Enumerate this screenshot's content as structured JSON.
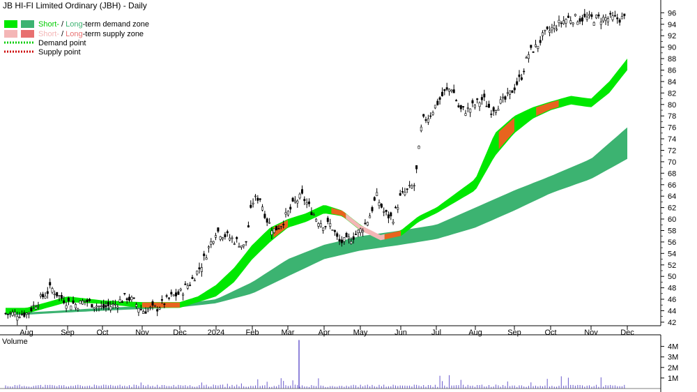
{
  "colors": {
    "short_demand": "#00e800",
    "long_demand": "#3cb371",
    "short_supply": "#f4b6b6",
    "long_supply": "#e87070",
    "supply_band": "#e8641e",
    "demand_point": "#00cc00",
    "supply_point": "#cc0000",
    "volume_label": "#4b0082",
    "volume_bar": "#6a5acd",
    "candle": "#000000"
  },
  "chart_data": {
    "type": "line",
    "title": "JB HI-FI Limited Ordinary (JBH) - Daily",
    "legend": {
      "placement": "top-left",
      "zones": [
        {
          "short": "Short-",
          "sep": " / ",
          "long": "Long",
          "rest": "-term demand zone"
        },
        {
          "short": "Short-",
          "sep": " / ",
          "long": "Long",
          "rest": "-term supply zone"
        }
      ],
      "points": [
        "Demand point",
        "Supply point"
      ]
    },
    "x_months": [
      "Aug",
      "Sep",
      "Oct",
      "Nov",
      "Dec",
      "2024",
      "Feb",
      "Mar",
      "Apr",
      "May",
      "Jun",
      "Jul",
      "Aug",
      "Sep",
      "Oct",
      "Nov",
      "Dec"
    ],
    "y_ticks": [
      42,
      44,
      46,
      48,
      50,
      52,
      54,
      56,
      58,
      60,
      62,
      64,
      66,
      68,
      70,
      72,
      74,
      76,
      78,
      80,
      82,
      84,
      86,
      88,
      90,
      92,
      94,
      96
    ],
    "ylim": [
      41.5,
      97.5
    ],
    "grid": false,
    "price_series": {
      "name": "JBH",
      "t": [
        0,
        0.2,
        0.4,
        0.6,
        0.8,
        1,
        1.3,
        1.5,
        1.8,
        2,
        2.3,
        2.6,
        2.8,
        3,
        3.4,
        3.8,
        4,
        4.3,
        4.6,
        4.8,
        5,
        5.3,
        5.6,
        5.8,
        6,
        6.2,
        6.4,
        6.6,
        6.8,
        7,
        7.2,
        7.4,
        7.6,
        7.8,
        8,
        8.2,
        8.4,
        8.6,
        8.8,
        9,
        9.2,
        9.4,
        9.6,
        9.8,
        10,
        10.2,
        10.4,
        10.6,
        10.8,
        11,
        11.2,
        11.4,
        11.6,
        11.8,
        12,
        12.2,
        12.4,
        12.6,
        12.8,
        13,
        13.2,
        13.4,
        13.6,
        13.8,
        14,
        14.2,
        14.4,
        14.6,
        14.8,
        15,
        15.2,
        15.4,
        15.6,
        15.8,
        16
      ],
      "price": [
        43.5,
        45,
        46.5,
        48,
        46.5,
        45.5,
        45,
        45.8,
        45,
        44.5,
        45,
        46.5,
        45.5,
        44,
        44.5,
        46.5,
        47,
        49,
        52,
        55,
        58,
        57,
        56,
        55,
        63,
        64,
        60,
        58,
        59,
        61,
        63,
        64,
        62,
        60,
        59,
        59,
        56,
        56,
        57,
        58,
        60,
        64,
        61,
        60,
        64,
        65,
        66,
        77,
        78,
        80,
        82,
        83,
        79,
        79,
        80,
        81,
        79,
        80,
        81,
        83,
        85,
        89,
        90,
        92,
        93,
        94,
        95,
        95,
        95,
        95,
        95,
        95,
        95,
        95,
        95
      ],
      "range_note": ""
    },
    "short_band": {
      "t": [
        0,
        1,
        2,
        3,
        4,
        4.5,
        5,
        5.5,
        6,
        6.5,
        7,
        7.5,
        8,
        8.5,
        9,
        9.5,
        10,
        10.5,
        11,
        11.5,
        12,
        12.5,
        13,
        13.5,
        14,
        14.5,
        15,
        15.5,
        16
      ],
      "upper": [
        44.5,
        46.5,
        45.8,
        45.5,
        45.5,
        46.5,
        48.5,
        51.5,
        55.5,
        58.5,
        60,
        61,
        62.5,
        61.5,
        59,
        57,
        58,
        60.5,
        62,
        64.5,
        67,
        75,
        78,
        79.5,
        80.5,
        81.5,
        81,
        84,
        88
      ],
      "lower": [
        43.5,
        45.5,
        45.2,
        44.5,
        44.5,
        45.5,
        46.5,
        49,
        53,
        56,
        58.5,
        59.5,
        61,
        60.5,
        58,
        56.5,
        57,
        59.5,
        61,
        63,
        65,
        71,
        75,
        77.5,
        79,
        80,
        79.5,
        82,
        86
      ],
      "supply_segments": [
        [
          3,
          4
        ],
        [
          6.6,
          7
        ],
        [
          8.2,
          8.6
        ],
        [
          8.6,
          9.6
        ],
        [
          9.6,
          10
        ],
        [
          12.6,
          13
        ],
        [
          13.6,
          14.2
        ]
      ]
    },
    "long_band": {
      "t": [
        0,
        1,
        2,
        3,
        4,
        5,
        6,
        7,
        8,
        9,
        10,
        11,
        12,
        13,
        14,
        15,
        16
      ],
      "upper": [
        43.7,
        44.1,
        44.5,
        44.8,
        45.2,
        46,
        49,
        53,
        55.5,
        57,
        58,
        59,
        62,
        65,
        67.5,
        70.5,
        76
      ],
      "lower": [
        43.3,
        43.7,
        44,
        44.3,
        44.6,
        45.3,
        47,
        50,
        53,
        54.5,
        55.5,
        56.5,
        58.5,
        61.5,
        64.5,
        67,
        70.5
      ]
    },
    "volume": {
      "label": "Volume",
      "y_ticks": [
        "4M",
        "3M",
        "2M",
        "1M"
      ],
      "ylim": [
        0,
        4.7
      ],
      "spike_month": 9,
      "spike_value": 4.6,
      "typical_value": 0.25
    }
  }
}
